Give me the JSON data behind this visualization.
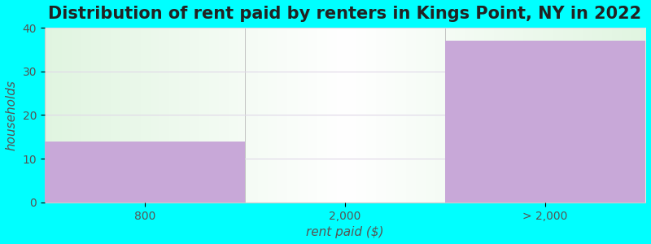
{
  "title": "Distribution of rent paid by renters in Kings Point, NY in 2022",
  "categories": [
    "800",
    "2,000",
    "> 2,000"
  ],
  "values": [
    14,
    0,
    37
  ],
  "bar_color": "#c8a8d8",
  "bg_color": "#00ffff",
  "xlabel": "rent paid ($)",
  "ylabel": "households",
  "ylim": [
    0,
    40
  ],
  "yticks": [
    0,
    10,
    20,
    30,
    40
  ],
  "title_fontsize": 15,
  "axis_label_fontsize": 11,
  "tick_fontsize": 10,
  "grid_color": "#e0d8e8",
  "n_bins": 3,
  "bin_edges": [
    0,
    1,
    2,
    3
  ]
}
